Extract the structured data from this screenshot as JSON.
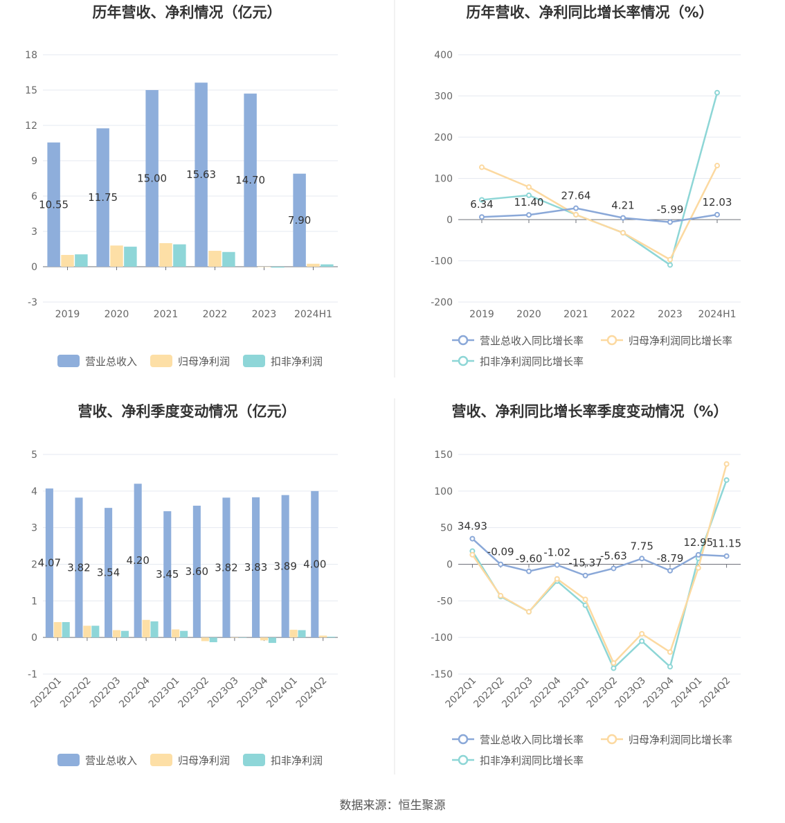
{
  "source": "数据来源：恒生聚源",
  "colors": {
    "revenue": "#8eaedb",
    "net": "#fddfa6",
    "deducted": "#8ed6d8",
    "revenue_line": "#8aa8d8",
    "net_line": "#fcd9a0",
    "deducted_line": "#8dd6d6"
  },
  "chart_data": [
    {
      "type": "bar",
      "title": "历年营收、净利情况（亿元）",
      "categories": [
        "2019",
        "2020",
        "2021",
        "2022",
        "2023",
        "2024H1"
      ],
      "yticks": [
        "18",
        "15",
        "12",
        "9",
        "6",
        "3",
        "0",
        "-3"
      ],
      "ylim": [
        -3,
        18
      ],
      "series": [
        {
          "name": "营业总收入",
          "values": [
            10.55,
            11.75,
            15.0,
            15.63,
            14.7,
            7.9
          ],
          "labels": [
            "10.55",
            "11.75",
            "15.00",
            "15.63",
            "14.70",
            "7.90"
          ]
        },
        {
          "name": "归母净利润",
          "values": [
            1.0,
            1.8,
            2.0,
            1.35,
            -0.02,
            0.25
          ]
        },
        {
          "name": "扣非净利润",
          "values": [
            1.05,
            1.7,
            1.9,
            1.25,
            -0.08,
            0.2
          ]
        }
      ],
      "legend": "bottom"
    },
    {
      "type": "line",
      "title": "历年营收、净利同比增长率情况（%）",
      "categories": [
        "2019",
        "2020",
        "2021",
        "2022",
        "2023",
        "2024H1"
      ],
      "yticks": [
        "400",
        "300",
        "200",
        "100",
        "0",
        "-100",
        "-200"
      ],
      "ylim": [
        -200,
        400
      ],
      "series": [
        {
          "name": "营业总收入同比增长率",
          "values": [
            6.34,
            11.4,
            27.64,
            4.21,
            -5.99,
            12.03
          ],
          "labels": [
            "6.34",
            "11.40",
            "27.64",
            "4.21",
            "-5.99",
            "12.03"
          ]
        },
        {
          "name": "归母净利润同比增长率",
          "values": [
            127,
            79,
            12,
            -32,
            -97,
            131
          ]
        },
        {
          "name": "扣非净利润同比增长率",
          "values": [
            48,
            59,
            12,
            -32,
            -110,
            308
          ]
        }
      ],
      "legend": "bottom"
    },
    {
      "type": "bar",
      "title": "营收、净利季度变动情况（亿元）",
      "categories": [
        "2022Q1",
        "2022Q2",
        "2022Q3",
        "2022Q4",
        "2023Q1",
        "2023Q2",
        "2023Q3",
        "2023Q4",
        "2024Q1",
        "2024Q2"
      ],
      "yticks": [
        "5",
        "4",
        "3",
        "2",
        "1",
        "0",
        "-1"
      ],
      "ylim": [
        -1,
        5
      ],
      "series": [
        {
          "name": "营业总收入",
          "values": [
            4.07,
            3.82,
            3.54,
            4.2,
            3.45,
            3.6,
            3.82,
            3.83,
            3.89,
            4.0
          ],
          "labels": [
            "4.07",
            "3.82",
            "3.54",
            "4.20",
            "3.45",
            "3.60",
            "3.82",
            "3.83",
            "3.89",
            "4.00"
          ]
        },
        {
          "name": "归母净利润",
          "values": [
            0.42,
            0.32,
            0.2,
            0.48,
            0.22,
            -0.1,
            0.0,
            -0.08,
            0.21,
            0.05
          ]
        },
        {
          "name": "扣非净利润",
          "values": [
            0.42,
            0.32,
            0.18,
            0.44,
            0.18,
            -0.13,
            -0.01,
            -0.15,
            0.2,
            0.02
          ]
        }
      ],
      "legend": "bottom"
    },
    {
      "type": "line",
      "title": "营收、净利同比增长率季度变动情况（%）",
      "categories": [
        "2022Q1",
        "2022Q2",
        "2022Q3",
        "2022Q4",
        "2023Q1",
        "2023Q2",
        "2023Q3",
        "2023Q4",
        "2024Q1",
        "2024Q2"
      ],
      "yticks": [
        "150",
        "100",
        "50",
        "0",
        "-50",
        "-100",
        "-150"
      ],
      "ylim": [
        -150,
        150
      ],
      "series": [
        {
          "name": "营业总收入同比增长率",
          "values": [
            34.93,
            -0.09,
            -9.6,
            -1.02,
            -15.37,
            -5.63,
            7.75,
            -8.79,
            12.95,
            11.15
          ],
          "labels": [
            "34.93",
            "-0.09",
            "-9.60",
            "-1.02",
            "-15.37",
            "-5.63",
            "7.75",
            "-8.79",
            "12.95",
            "11.15"
          ]
        },
        {
          "name": "归母净利润同比增长率",
          "values": [
            13,
            -43,
            -65,
            -20,
            -48,
            -135,
            -95,
            -120,
            -5,
            137
          ]
        },
        {
          "name": "扣非净利润同比增长率",
          "values": [
            18,
            -44,
            -65,
            -23,
            -56,
            -142,
            -105,
            -140,
            8,
            115
          ]
        }
      ],
      "legend": "bottom"
    }
  ]
}
